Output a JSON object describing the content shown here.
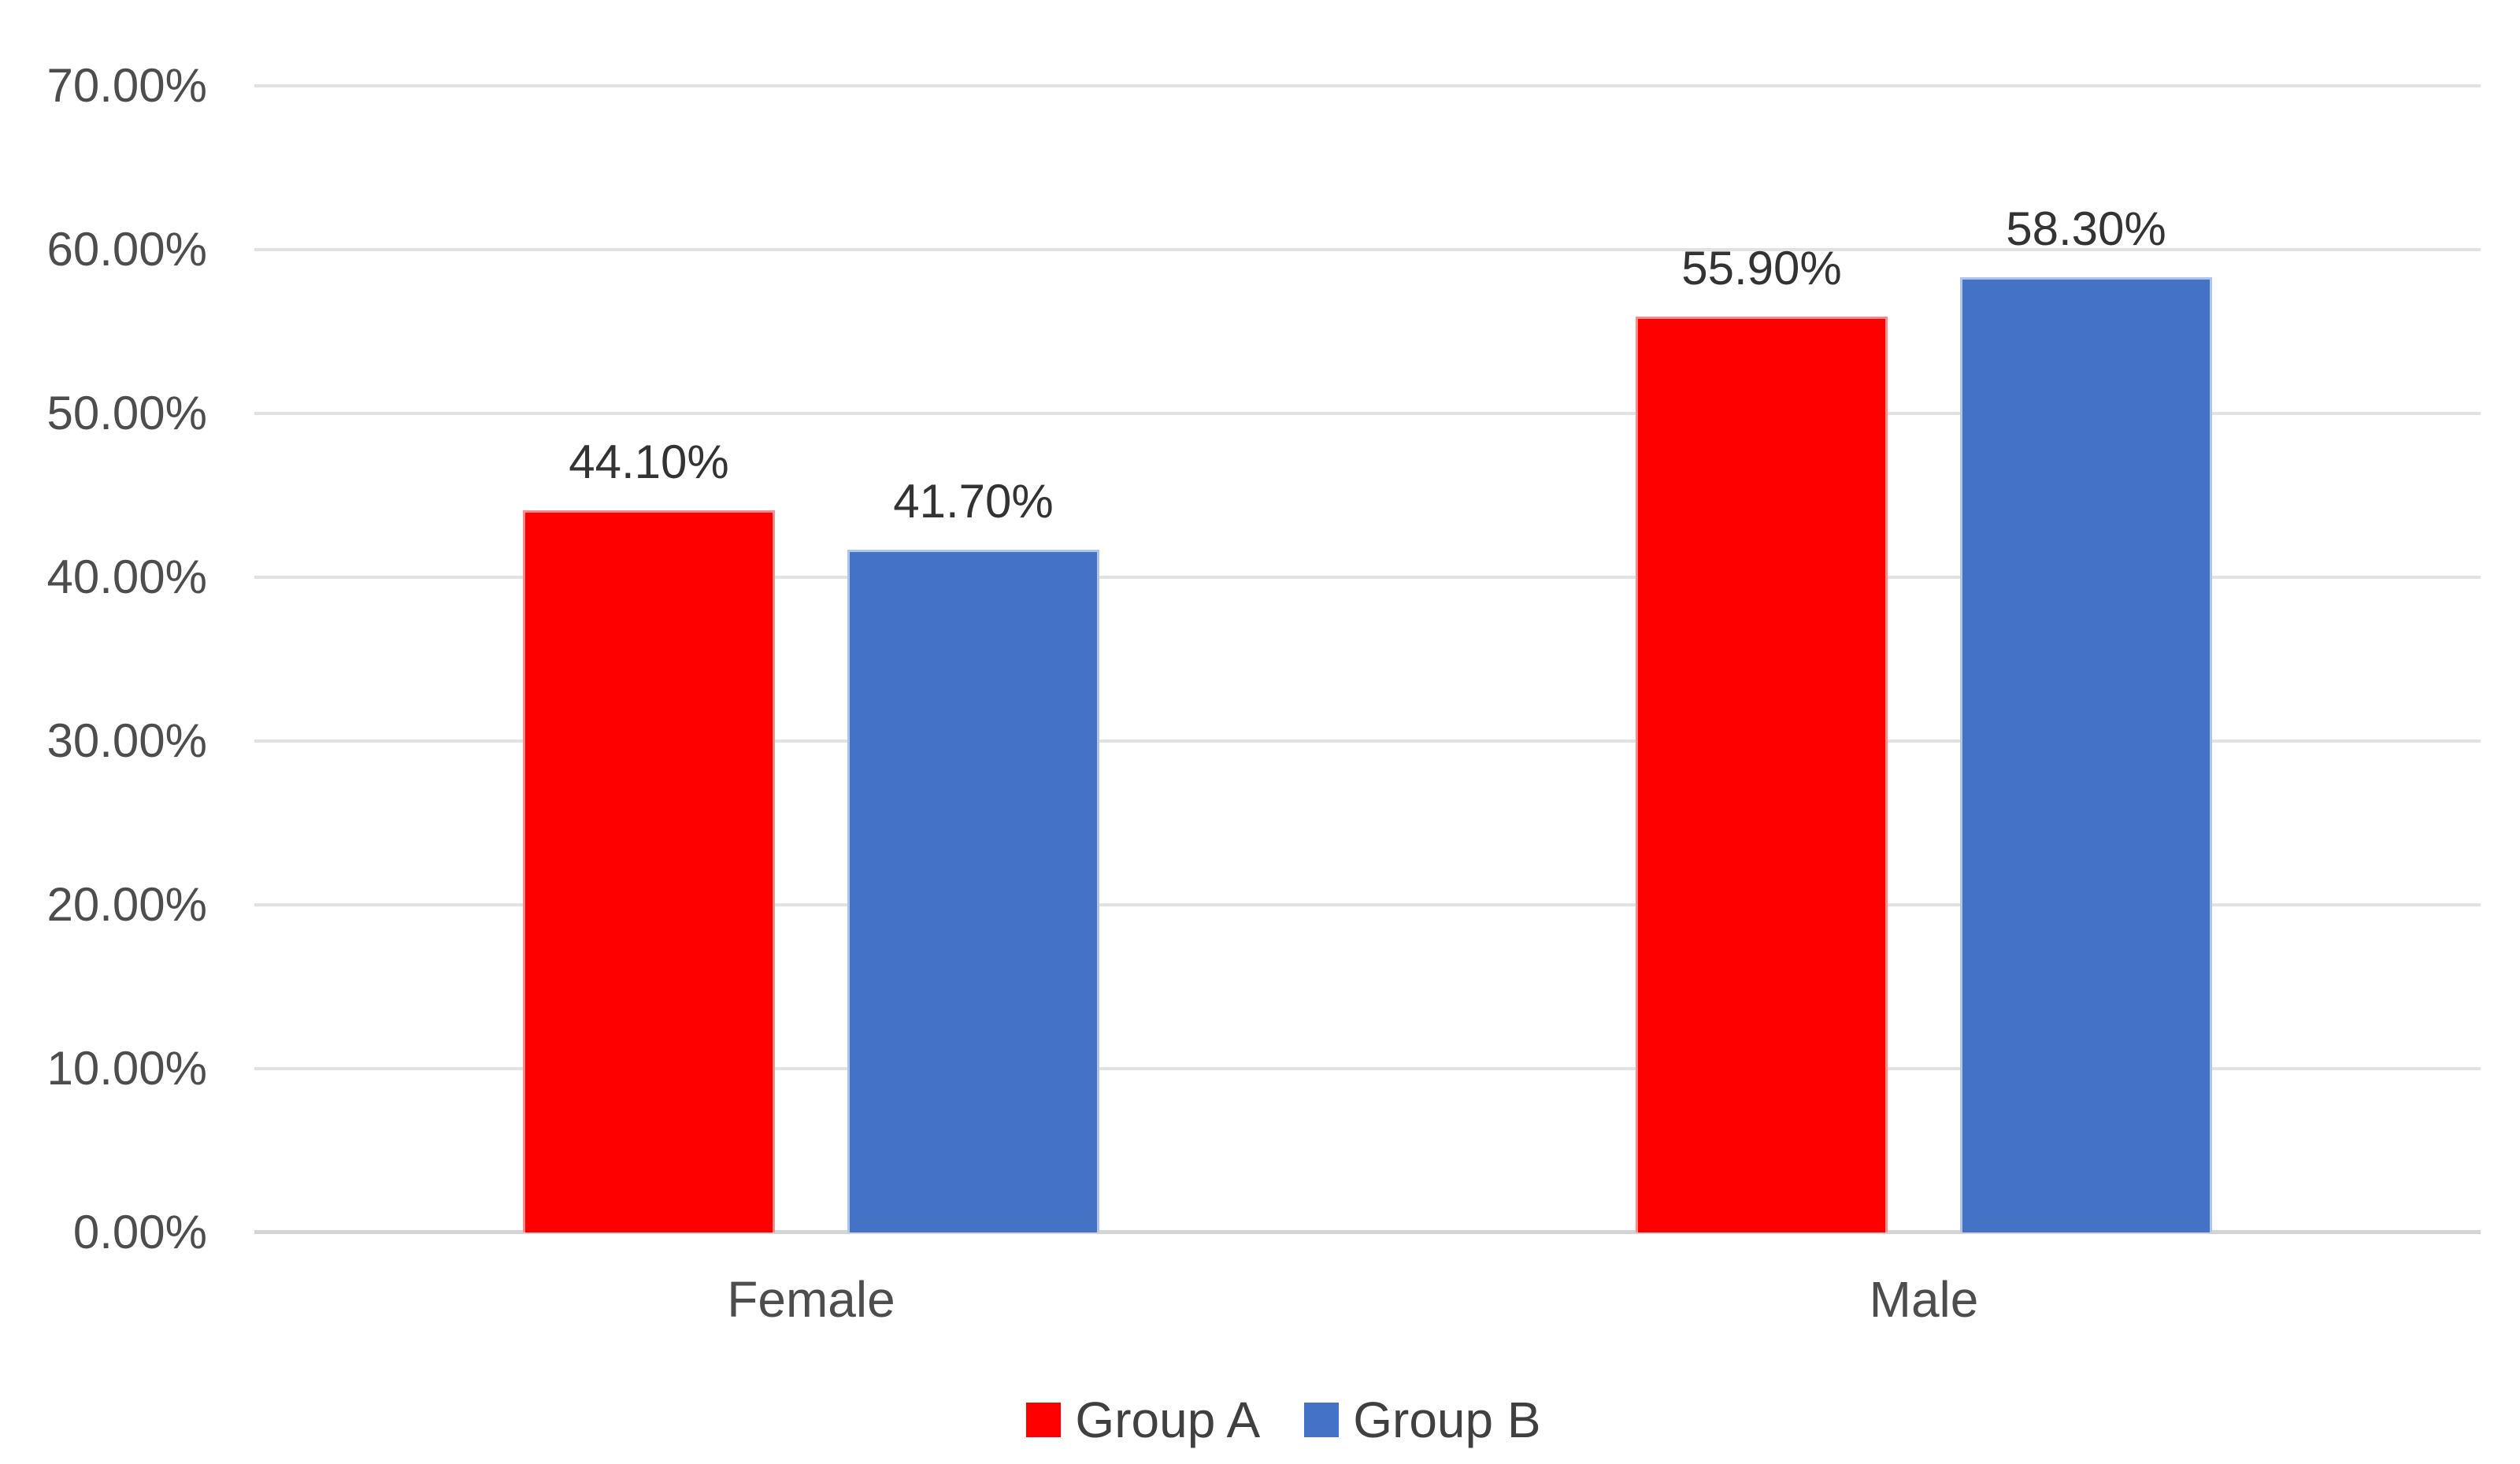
{
  "chart_data": {
    "type": "bar",
    "title": "",
    "categories": [
      "Female",
      "Male"
    ],
    "series": [
      {
        "name": "Group A",
        "color": "#FF0000",
        "edge_color": "#FF8A8A",
        "values": [
          44.1,
          55.9
        ],
        "data_labels": [
          "44.10%",
          "55.90%"
        ]
      },
      {
        "name": "Group B",
        "color": "#4472C4",
        "edge_color": "#AFC6EA",
        "values": [
          41.7,
          58.3
        ],
        "data_labels": [
          "41.70%",
          "58.30%"
        ]
      }
    ],
    "y_axis": {
      "tick_labels": [
        "0.00%",
        "10.00%",
        "20.00%",
        "30.00%",
        "40.00%",
        "50.00%",
        "60.00%",
        "70.00%"
      ],
      "min": 0,
      "max": 70,
      "step": 10
    },
    "x_axis": {
      "labels": [
        "Female",
        "Male"
      ]
    },
    "grid": true,
    "legend": {
      "position": "bottom",
      "entries": [
        "Group A",
        "Group B"
      ]
    },
    "style_colors": {
      "gridline": "#E2E2E2",
      "axis_line": "#D4D4D4",
      "tick_text": "#4D4D4D",
      "category_text": "#4D4D4D",
      "data_label_text": "#333333",
      "legend_text": "#404040",
      "background": "#FFFFFF"
    }
  }
}
